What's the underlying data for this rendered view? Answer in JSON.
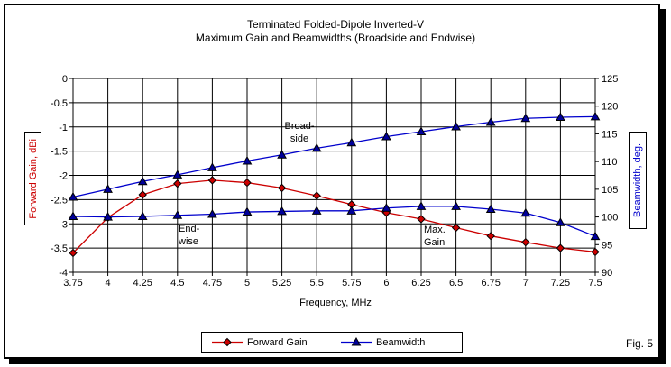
{
  "chart_data": {
    "type": "line",
    "title": "Terminated Folded-Dipole Inverted-V",
    "subtitle": "Maximum Gain and Beamwidths (Broadside and Endwise)",
    "xlabel": "Frequency, MHz",
    "grid": true,
    "legend_position": "bottom",
    "left_axis": {
      "label": "Forward Gain, dBi",
      "color": "#cc0000",
      "min": -4,
      "max": 0,
      "ticks": [
        "0",
        "-0.5",
        "-1",
        "-1.5",
        "-2",
        "-2.5",
        "-3",
        "-3.5",
        "-4"
      ]
    },
    "right_axis": {
      "label": "Beamwidth, deg.",
      "color": "#0000cc",
      "min": 90,
      "max": 125,
      "ticks": [
        "125",
        "120",
        "115",
        "110",
        "105",
        "100",
        "95",
        "90"
      ]
    },
    "x": [
      3.75,
      4,
      4.25,
      4.5,
      4.75,
      5,
      5.25,
      5.5,
      5.75,
      6,
      6.25,
      6.5,
      6.75,
      7,
      7.25,
      7.5
    ],
    "x_tick_labels": [
      "3.75",
      "4",
      "4.25",
      "4.5",
      "4.75",
      "5",
      "5.25",
      "5.5",
      "5.75",
      "6",
      "6.25",
      "6.5",
      "6.75",
      "7",
      "7.25",
      "7.5"
    ],
    "series": [
      {
        "name": "Forward Gain",
        "axis": "left",
        "line_color": "#cc0000",
        "marker": "diamond",
        "marker_fill": "#cc0000",
        "values": [
          -3.6,
          -2.87,
          -2.4,
          -2.17,
          -2.1,
          -2.15,
          -2.26,
          -2.42,
          -2.6,
          -2.77,
          -2.9,
          -3.08,
          -3.25,
          -3.38,
          -3.5,
          -3.58
        ]
      },
      {
        "name": "Beamwidth (Broadside)",
        "axis": "right",
        "line_color": "#0000cc",
        "marker": "triangle",
        "marker_fill": "#000099",
        "values": [
          103.6,
          105,
          106.4,
          107.6,
          108.9,
          110.1,
          111.2,
          112.4,
          113.4,
          114.5,
          115.4,
          116.3,
          117.1,
          117.8,
          118,
          118.1
        ]
      },
      {
        "name": "Beamwidth (Endwise)",
        "axis": "right",
        "line_color": "#0000cc",
        "marker": "triangle",
        "marker_fill": "#000099",
        "values": [
          100.1,
          100,
          100.1,
          100.3,
          100.5,
          100.9,
          101,
          101.1,
          101.1,
          101.6,
          101.9,
          101.9,
          101.4,
          100.7,
          99,
          96.5
        ]
      }
    ],
    "legend": {
      "items": [
        {
          "label": "Forward Gain",
          "color": "#cc0000",
          "marker": "diamond",
          "marker_fill": "#cc0000"
        },
        {
          "label": "Beamwidth",
          "color": "#0000cc",
          "marker": "triangle",
          "marker_fill": "#000099"
        }
      ]
    },
    "annotations": {
      "broadside": {
        "line1": "Broad-",
        "line2": "side"
      },
      "endwise": {
        "line1": "End-",
        "line2": "wise"
      },
      "max_gain": {
        "line1": "Max.",
        "line2": "Gain"
      }
    },
    "figure_label": "Fig. 5"
  }
}
